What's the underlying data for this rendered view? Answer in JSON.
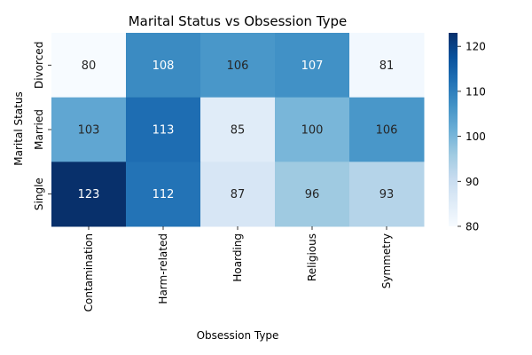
{
  "chart_data": {
    "type": "heatmap",
    "title": "Marital Status vs Obsession Type",
    "xlabel": "Obsession Type",
    "ylabel": "Marital Status",
    "x_categories": [
      "Contamination",
      "Harm-related",
      "Hoarding",
      "Religious",
      "Symmetry"
    ],
    "y_categories": [
      "Divorced",
      "Married",
      "Single"
    ],
    "values": [
      [
        80,
        108,
        106,
        107,
        81
      ],
      [
        103,
        113,
        85,
        100,
        106
      ],
      [
        123,
        112,
        87,
        96,
        93
      ]
    ],
    "colorbar": {
      "min": 80,
      "max": 123,
      "ticks": [
        80,
        90,
        100,
        110,
        120
      ],
      "colormap": "Blues"
    },
    "annotated": true
  }
}
